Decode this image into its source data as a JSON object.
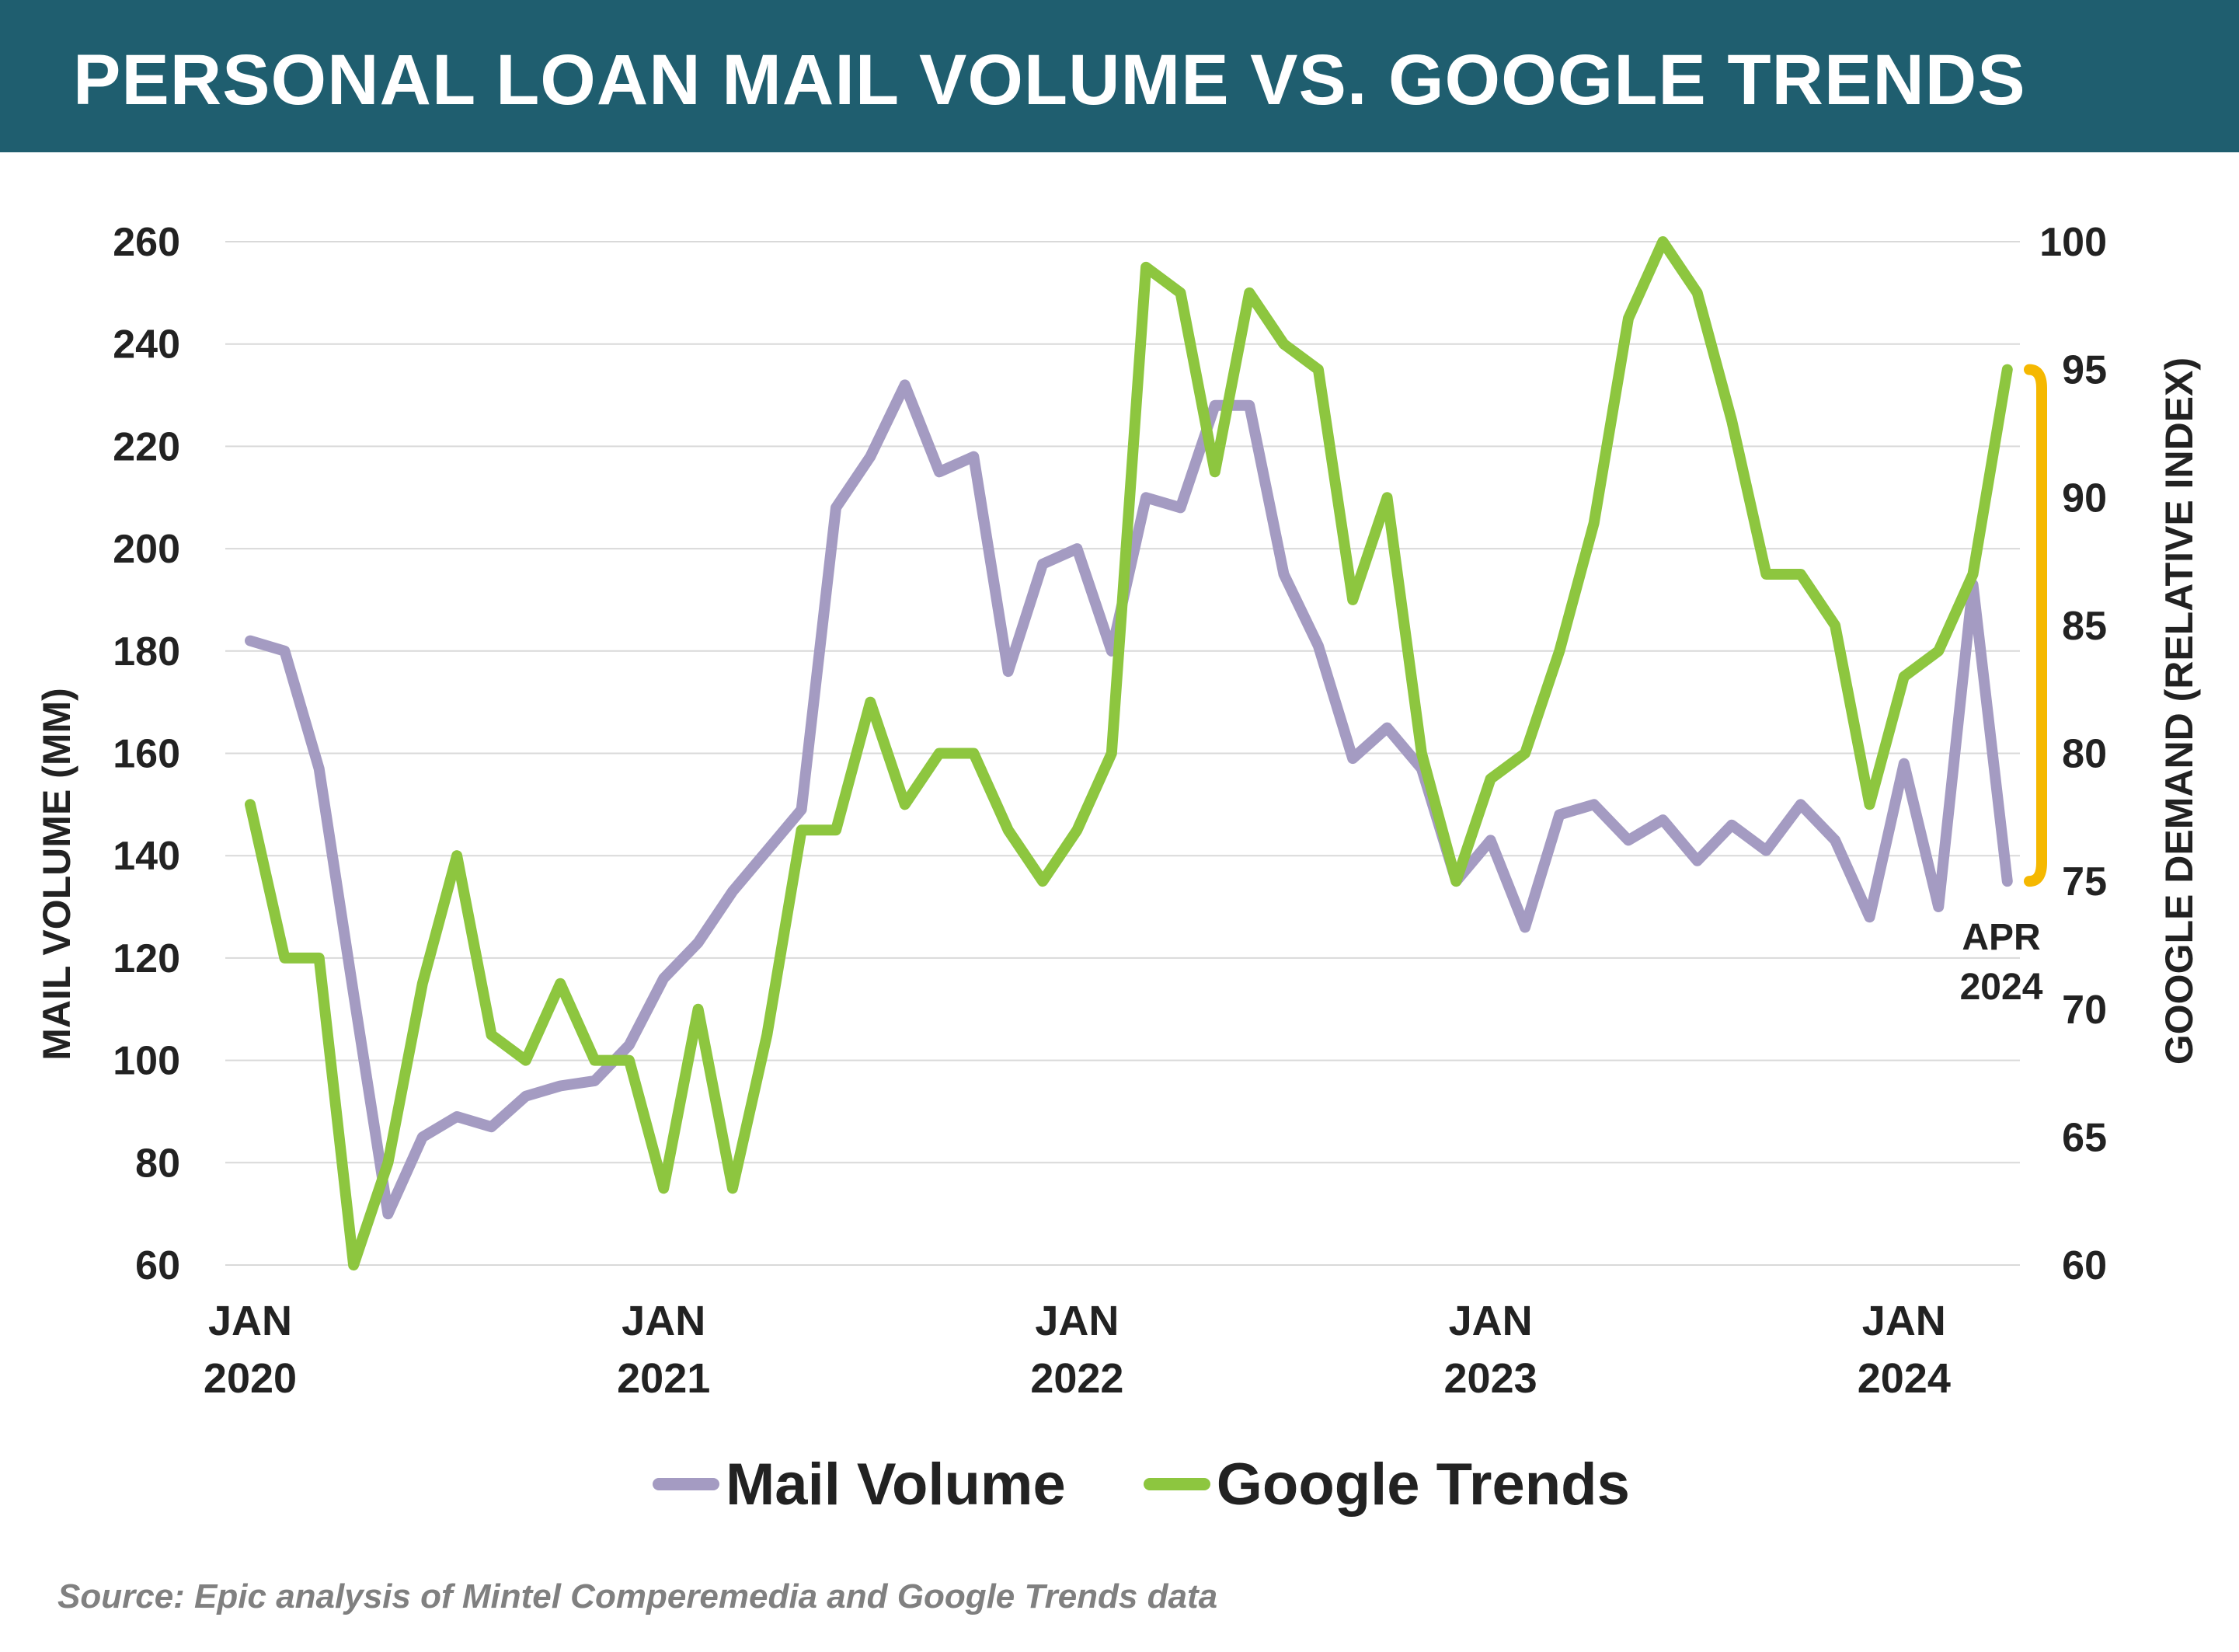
{
  "title": "PERSONAL LOAN MAIL VOLUME VS. GOOGLE TRENDS",
  "source": "Source: Epic analysis of Mintel Comperemedia and Google Trends data",
  "annotation": {
    "month": "APR",
    "year": "2024"
  },
  "colors": {
    "title_bar": "#1f5e6f",
    "mail_volume": "#a49bc2",
    "google_trends": "#8dc63f",
    "bracket": "#f5b800"
  },
  "chart_data": {
    "type": "line",
    "x_start": "2020-01",
    "x_step": "month",
    "x_tick_labels": [
      {
        "month": "JAN",
        "year": "2020"
      },
      {
        "month": "JAN",
        "year": "2021"
      },
      {
        "month": "JAN",
        "year": "2022"
      },
      {
        "month": "JAN",
        "year": "2023"
      },
      {
        "month": "JAN",
        "year": "2024"
      }
    ],
    "x_range": [
      "2020-01",
      "2024-04"
    ],
    "y_left": {
      "label": "MAIL VOLUME (MM)",
      "min": 60,
      "max": 260,
      "ticks": [
        60,
        80,
        100,
        120,
        140,
        160,
        180,
        200,
        220,
        240,
        260
      ]
    },
    "y_right": {
      "label": "GOOGLE DEMAND (RELATIVE INDEX)",
      "min": 60,
      "max": 100,
      "ticks": [
        60,
        65,
        70,
        75,
        80,
        85,
        90,
        95,
        100
      ]
    },
    "grid": "horizontal",
    "legend_position": "bottom",
    "series": [
      {
        "name": "Mail Volume",
        "axis": "left",
        "values": [
          182,
          180,
          157,
          113,
          70,
          85,
          89,
          87,
          93,
          95,
          96,
          103,
          116,
          123,
          133,
          141,
          149,
          208,
          218,
          232,
          215,
          218,
          176,
          197,
          200,
          180,
          210,
          208,
          228,
          228,
          195,
          181,
          159,
          165,
          157,
          135,
          143,
          126,
          148,
          150,
          143,
          147,
          139,
          146,
          141,
          150,
          143,
          128,
          158,
          130,
          193,
          135
        ]
      },
      {
        "name": "Google Trends",
        "axis": "right",
        "values": [
          78,
          72,
          72,
          60,
          64,
          71,
          76,
          69,
          68,
          71,
          68,
          68,
          63,
          70,
          63,
          69,
          77,
          77,
          82,
          78,
          80,
          80,
          77,
          75,
          77,
          80,
          99,
          98,
          91,
          98,
          96,
          95,
          86,
          90,
          80,
          75,
          79,
          80,
          84,
          89,
          97,
          100,
          98,
          93,
          87,
          87,
          85,
          78,
          83,
          84,
          87,
          95
        ]
      }
    ]
  }
}
